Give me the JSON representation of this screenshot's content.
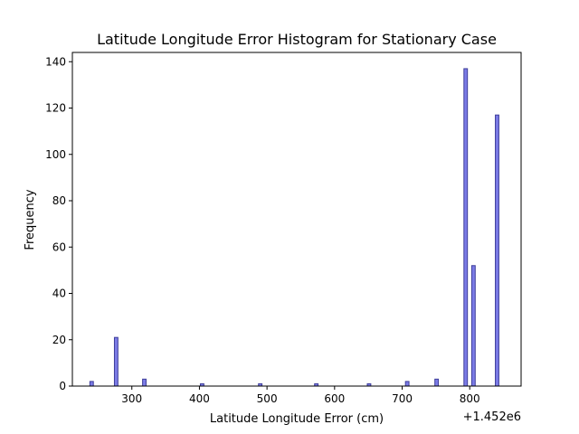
{
  "chart_data": {
    "type": "bar",
    "title": "Latitude Longitude Error Histogram for Stationary Case",
    "xlabel": "Latitude Longitude Error (cm)",
    "ylabel": "Frequency",
    "x_offset_label": "+1.452e6",
    "xlim": [
      212,
      876
    ],
    "ylim": [
      0,
      144
    ],
    "x_ticks": [
      300,
      400,
      500,
      600,
      700,
      800
    ],
    "y_ticks": [
      0,
      20,
      40,
      60,
      80,
      100,
      120,
      140
    ],
    "bin_width": 5.2,
    "bins": [
      {
        "x": 240.5,
        "value": 2
      },
      {
        "x": 276.8,
        "value": 21
      },
      {
        "x": 318.5,
        "value": 3
      },
      {
        "x": 404.0,
        "value": 1
      },
      {
        "x": 490.0,
        "value": 1
      },
      {
        "x": 573.0,
        "value": 1
      },
      {
        "x": 651.0,
        "value": 1
      },
      {
        "x": 707.5,
        "value": 2
      },
      {
        "x": 751.0,
        "value": 3
      },
      {
        "x": 794.0,
        "value": 137
      },
      {
        "x": 805.5,
        "value": 52
      },
      {
        "x": 840.5,
        "value": 117
      }
    ],
    "bar_color": "#7b7be6",
    "bar_edge_color": "#3e3e9a",
    "grid": false,
    "legend": "none"
  }
}
